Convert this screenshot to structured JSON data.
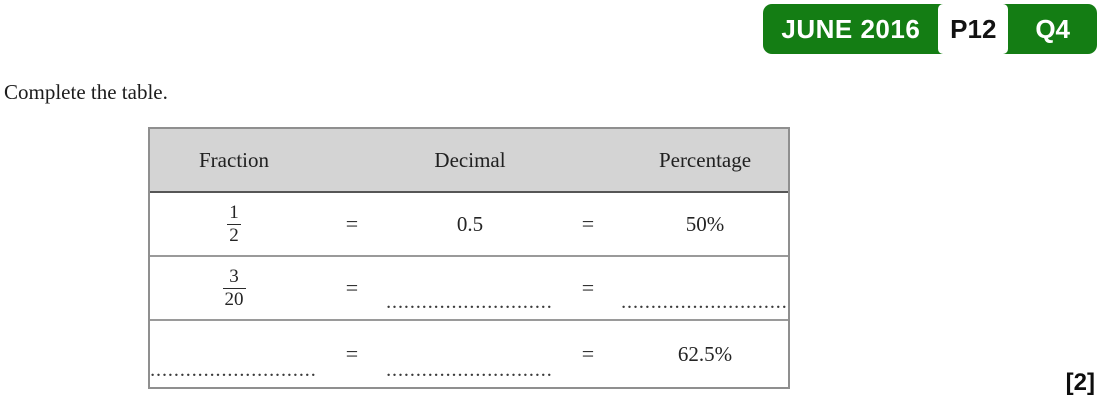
{
  "badge": {
    "session": "JUNE 2016",
    "paper": "P12",
    "question": "Q4",
    "green_color": "#147d14"
  },
  "instruction": "Complete the table.",
  "table": {
    "headers": [
      "Fraction",
      "Decimal",
      "Percentage"
    ],
    "equals": "=",
    "header_bg_color": "#d4d4d4",
    "border_color": "#8f8f8f",
    "rows": [
      {
        "fraction": {
          "num": "1",
          "den": "2"
        },
        "decimal": "0.5",
        "percentage": "50%"
      },
      {
        "fraction": {
          "num": "3",
          "den": "20"
        },
        "decimal_blank": "............................",
        "percentage_blank": "............................"
      },
      {
        "fraction_blank": "............................",
        "decimal_blank": "............................",
        "percentage": "62.5%"
      }
    ]
  },
  "marks": "[2]"
}
